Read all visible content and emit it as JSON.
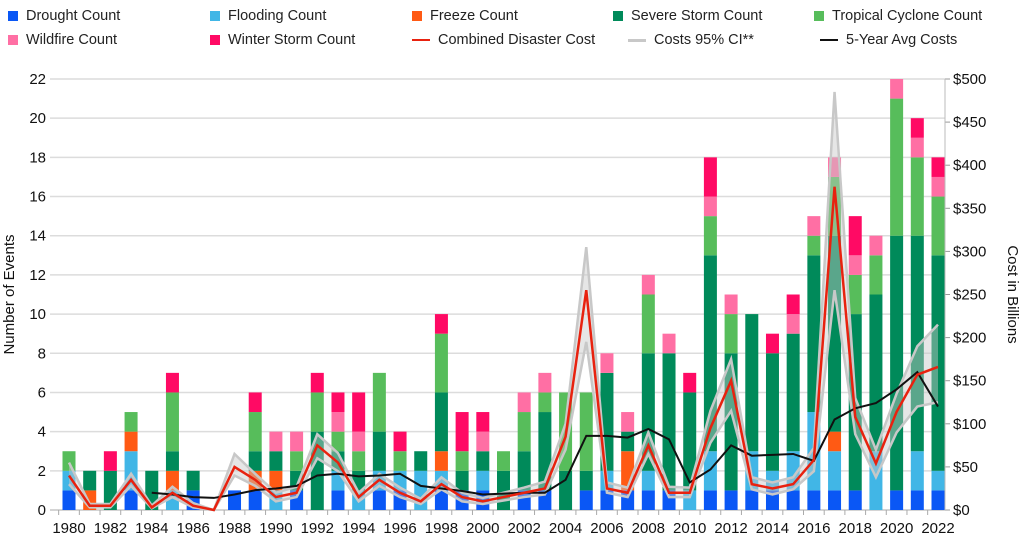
{
  "chart_data": {
    "type": "bar",
    "stacked": true,
    "xlabel": "",
    "ylabel": "Number of Events",
    "y2label": "Cost in Billions",
    "ylim": [
      0,
      22
    ],
    "y2lim": [
      0,
      500
    ],
    "grid": true,
    "legend_placement": "top",
    "categories": [
      1980,
      1981,
      1982,
      1983,
      1984,
      1985,
      1986,
      1987,
      1988,
      1989,
      1990,
      1991,
      1992,
      1993,
      1994,
      1995,
      1996,
      1997,
      1998,
      1999,
      2000,
      2001,
      2002,
      2003,
      2004,
      2005,
      2006,
      2007,
      2008,
      2009,
      2010,
      2011,
      2012,
      2013,
      2014,
      2015,
      2016,
      2017,
      2018,
      2019,
      2020,
      2021,
      2022
    ],
    "x_tick_labels": [
      "1980",
      "1982",
      "1984",
      "1986",
      "1988",
      "1990",
      "1992",
      "1994",
      "1996",
      "1998",
      "2000",
      "2002",
      "2004",
      "2006",
      "2008",
      "2010",
      "2012",
      "2014",
      "2016",
      "2018",
      "2020",
      "2022"
    ],
    "y_tick_labels": [
      "0",
      "2",
      "4",
      "6",
      "8",
      "10",
      "12",
      "14",
      "16",
      "18",
      "20",
      "22"
    ],
    "y2_tick_labels": [
      "$0",
      "$50",
      "$100",
      "$150",
      "$200",
      "$250",
      "$300",
      "$350",
      "$400",
      "$450",
      "$500"
    ],
    "series": [
      {
        "name": "Drought Count",
        "color": "#0a57f5",
        "values": [
          1,
          0,
          0,
          1,
          0,
          0,
          1,
          0,
          1,
          1,
          0,
          1,
          0,
          1,
          0,
          1,
          1,
          0,
          1,
          1,
          1,
          0,
          1,
          1,
          0,
          1,
          1,
          1,
          1,
          1,
          0,
          1,
          1,
          1,
          1,
          1,
          1,
          1,
          1,
          0,
          1,
          1,
          1
        ]
      },
      {
        "name": "Flooding Count",
        "color": "#41b6e6",
        "values": [
          1,
          0,
          0,
          2,
          0,
          1,
          0,
          0,
          0,
          0,
          1,
          0,
          0,
          1,
          1,
          1,
          1,
          2,
          1,
          0,
          1,
          0,
          0,
          0,
          0,
          0,
          1,
          0,
          1,
          0,
          1,
          2,
          0,
          2,
          1,
          2,
          4,
          2,
          0,
          3,
          0,
          2,
          1
        ]
      },
      {
        "name": "Freeze Count",
        "color": "#ff5a14",
        "values": [
          0,
          1,
          0,
          1,
          0,
          1,
          0,
          0,
          0,
          1,
          1,
          0,
          0,
          0,
          0,
          0,
          0,
          0,
          1,
          0,
          0,
          0,
          0,
          0,
          0,
          0,
          0,
          2,
          0,
          0,
          0,
          0,
          0,
          0,
          0,
          0,
          0,
          1,
          0,
          0,
          0,
          0,
          0
        ]
      },
      {
        "name": "Severe Storm Count",
        "color": "#008a5a",
        "values": [
          0,
          1,
          2,
          0,
          2,
          1,
          1,
          0,
          0,
          1,
          1,
          1,
          4,
          1,
          1,
          2,
          0,
          1,
          3,
          1,
          1,
          2,
          2,
          4,
          2,
          1,
          5,
          1,
          6,
          7,
          5,
          10,
          7,
          7,
          6,
          6,
          8,
          10,
          9,
          8,
          13,
          11,
          11
        ]
      },
      {
        "name": "Tropical Cyclone Count",
        "color": "#57bd5b",
        "values": [
          1,
          0,
          0,
          1,
          0,
          3,
          0,
          0,
          0,
          2,
          0,
          1,
          2,
          1,
          1,
          3,
          1,
          0,
          3,
          1,
          0,
          1,
          2,
          1,
          4,
          4,
          0,
          0,
          3,
          0,
          0,
          2,
          2,
          0,
          0,
          0,
          1,
          3,
          2,
          2,
          7,
          4,
          3
        ]
      },
      {
        "name": "Wildfire Count",
        "color": "#ff6fa4",
        "values": [
          0,
          0,
          0,
          0,
          0,
          0,
          0,
          0,
          0,
          0,
          1,
          1,
          0,
          1,
          1,
          0,
          0,
          0,
          0,
          0,
          1,
          0,
          1,
          1,
          0,
          0,
          1,
          1,
          1,
          1,
          0,
          1,
          1,
          0,
          0,
          1,
          1,
          1,
          1,
          1,
          1,
          1,
          1
        ]
      },
      {
        "name": "Winter Storm Count",
        "color": "#ff0a64",
        "values": [
          0,
          0,
          1,
          0,
          0,
          1,
          0,
          0,
          0,
          1,
          0,
          0,
          1,
          1,
          2,
          0,
          1,
          0,
          1,
          2,
          1,
          0,
          0,
          0,
          0,
          0,
          0,
          0,
          0,
          0,
          1,
          2,
          0,
          0,
          1,
          1,
          0,
          0,
          2,
          0,
          0,
          1,
          1
        ]
      }
    ],
    "lines": [
      {
        "name": "Combined Disaster Cost",
        "color": "#e8220f",
        "axis": "right",
        "values": [
          40,
          5,
          5,
          35,
          3,
          20,
          5,
          0,
          50,
          35,
          15,
          20,
          75,
          55,
          15,
          35,
          20,
          10,
          30,
          15,
          10,
          15,
          20,
          25,
          85,
          255,
          25,
          20,
          75,
          20,
          20,
          95,
          150,
          30,
          25,
          30,
          58,
          375,
          108,
          54,
          114,
          157,
          166
        ]
      },
      {
        "name": "Costs 95% CI**",
        "color": "#c8c8c8",
        "axis": "right",
        "low": [
          30,
          3,
          3,
          28,
          2,
          15,
          3,
          0,
          40,
          28,
          10,
          15,
          60,
          45,
          10,
          28,
          15,
          7,
          24,
          10,
          7,
          11,
          15,
          18,
          70,
          195,
          20,
          15,
          65,
          15,
          15,
          78,
          115,
          24,
          18,
          24,
          45,
          255,
          88,
          38,
          90,
          120,
          125
        ],
        "high": [
          55,
          7,
          7,
          42,
          5,
          27,
          8,
          0,
          65,
          42,
          20,
          27,
          88,
          66,
          20,
          42,
          26,
          13,
          38,
          20,
          14,
          20,
          26,
          33,
          100,
          305,
          32,
          26,
          90,
          27,
          26,
          115,
          175,
          38,
          32,
          38,
          72,
          485,
          130,
          70,
          135,
          190,
          215
        ]
      },
      {
        "name": "5-Year Avg Costs",
        "color": "#111111",
        "axis": "right",
        "start": 1984,
        "values": [
          20,
          18,
          15,
          14,
          18,
          23,
          25,
          28,
          40,
          42,
          39,
          40,
          42,
          28,
          25,
          22,
          18,
          19,
          20,
          20,
          35,
          86,
          86,
          84,
          94,
          82,
          32,
          47,
          75,
          63,
          64,
          65,
          57,
          105,
          118,
          124,
          140,
          160,
          120
        ]
      }
    ]
  }
}
